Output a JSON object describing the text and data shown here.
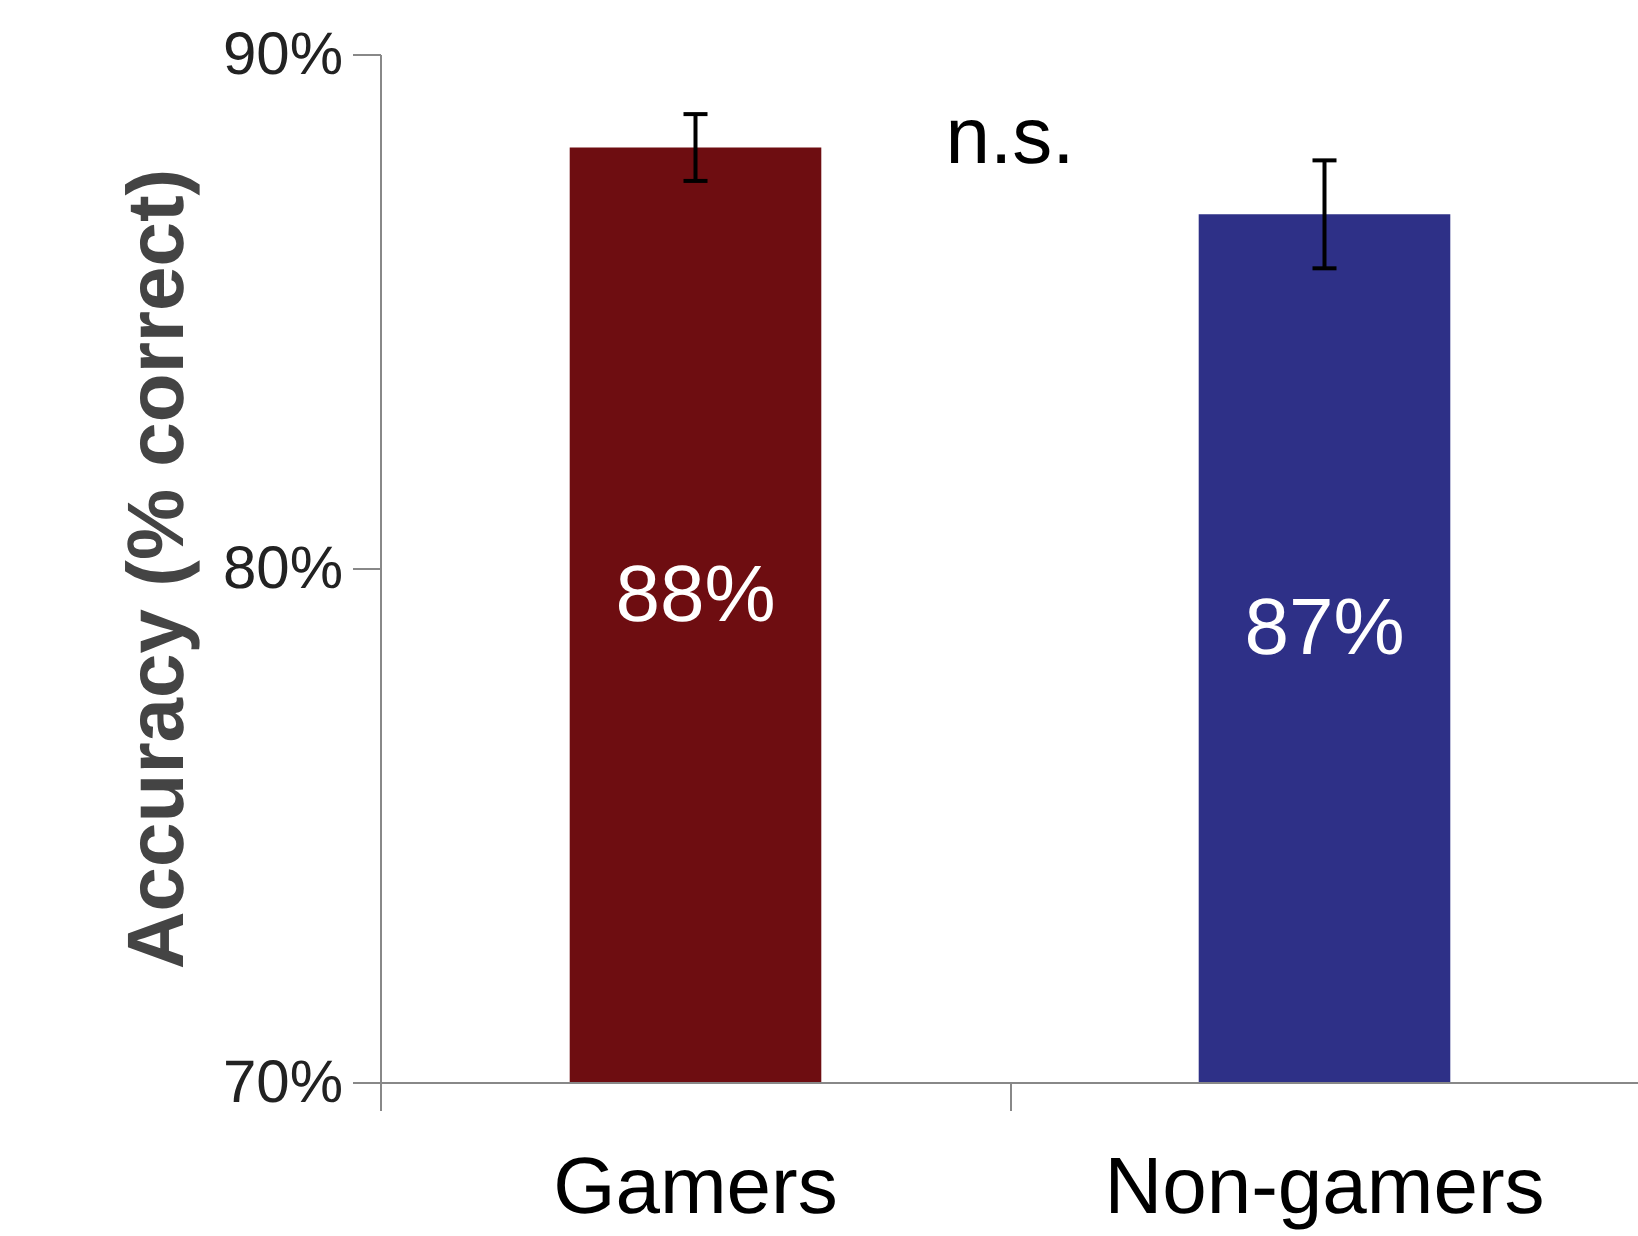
{
  "chart_data": {
    "type": "bar",
    "ylabel": "Accuracy (% correct)",
    "categories": [
      "Gamers",
      "Non-gamers"
    ],
    "values": [
      88.2,
      86.9
    ],
    "colors": [
      "#6e0d11",
      "#2e3087"
    ],
    "errors": [
      0.65,
      1.05
    ],
    "value_labels": [
      "88%",
      "87%"
    ],
    "ylim": [
      70,
      90
    ],
    "yticks": [
      {
        "value": 70,
        "label": "70%"
      },
      {
        "value": 80,
        "label": "80%"
      },
      {
        "value": 90,
        "label": "90%"
      }
    ],
    "annotations": [
      "n.s."
    ],
    "grid": false
  }
}
